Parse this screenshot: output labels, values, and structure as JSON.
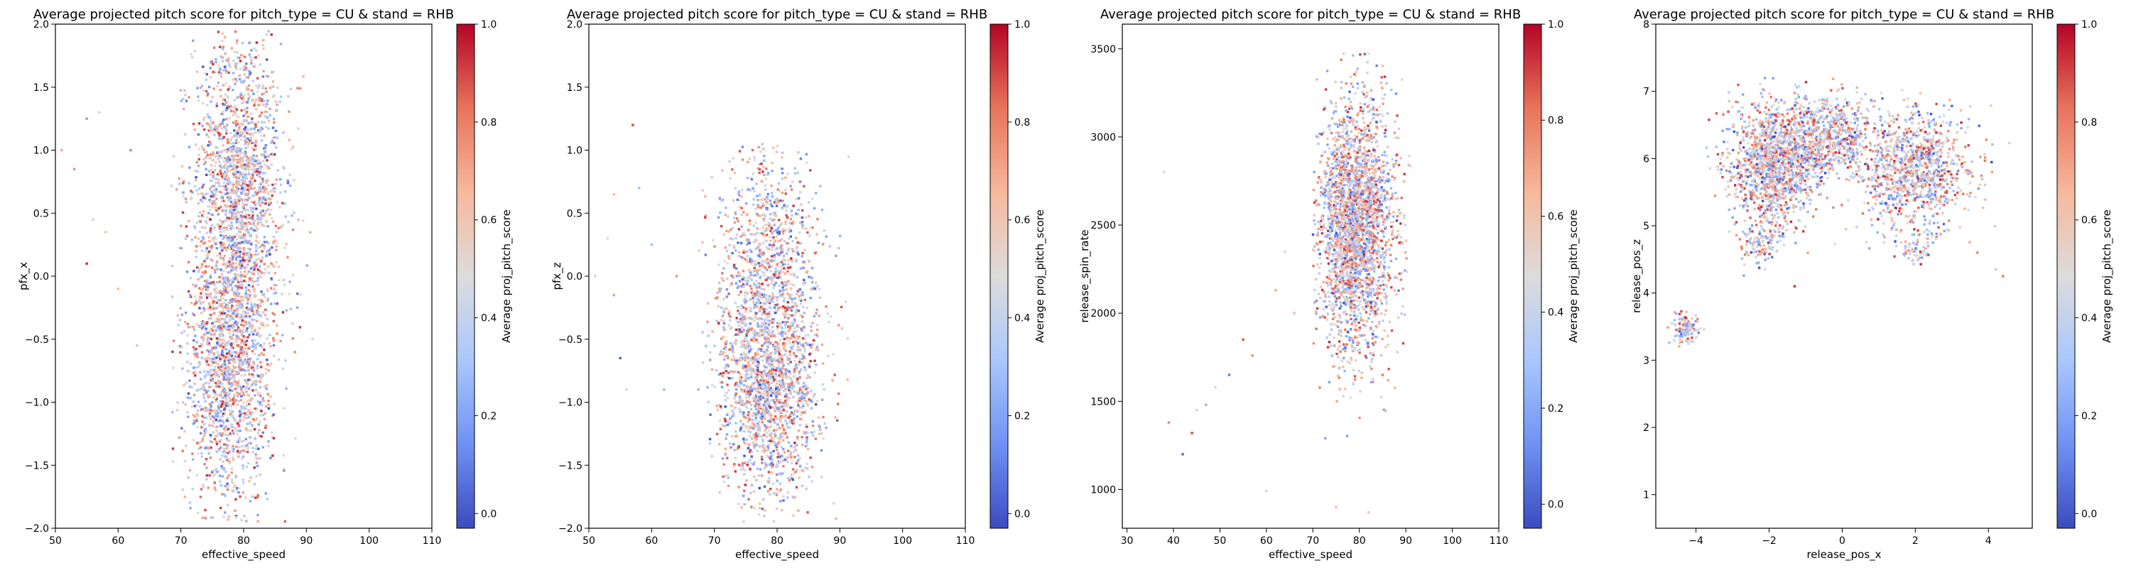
{
  "colors": {
    "cmap": [
      "#3b4cc0",
      "#6f92f3",
      "#aac7fd",
      "#dddcdc",
      "#f7b89c",
      "#e7745b",
      "#b40426"
    ],
    "axis": "#000000"
  },
  "colorbar_label": "Average proj_pitch_score",
  "chart_data": [
    {
      "type": "scatter",
      "title": "Average projected pitch score for pitch_type = CU & stand = RHB",
      "xlabel": "effective_speed",
      "ylabel": "pfx_x",
      "xlim": [
        50,
        110
      ],
      "ylim": [
        -2.0,
        2.0
      ],
      "xticks": [
        50,
        60,
        70,
        80,
        90,
        100,
        110
      ],
      "yticks": [
        -2.0,
        -1.5,
        -1.0,
        -0.5,
        0.0,
        0.5,
        1.0,
        1.5,
        2.0
      ],
      "xtick_labels": [
        "50",
        "60",
        "70",
        "80",
        "90",
        "100",
        "110"
      ],
      "ytick_labels": [
        "−2.0",
        "−1.5",
        "−1.0",
        "−0.5",
        "0.0",
        "0.5",
        "1.0",
        "1.5",
        "2.0"
      ],
      "colorbar": {
        "range": [
          -0.03,
          1.0
        ],
        "ticks": [
          0.0,
          0.2,
          0.4,
          0.6,
          0.8,
          1.0
        ],
        "tick_labels": [
          "0.0",
          "0.2",
          "0.4",
          "0.6",
          "0.8",
          "1.0"
        ]
      },
      "clusters": [
        {
          "cx": 79,
          "cy": 0.85,
          "sx": 3.5,
          "sy": 0.55,
          "n": 1500
        },
        {
          "cx": 77.5,
          "cy": -0.8,
          "sx": 3.5,
          "sy": 0.55,
          "n": 1500
        },
        {
          "cx": 79,
          "cy": 0.0,
          "sx": 4.5,
          "sy": 0.35,
          "n": 300
        }
      ],
      "outliers": [
        [
          51,
          1.0
        ],
        [
          53,
          0.85
        ],
        [
          55,
          1.25
        ],
        [
          56,
          0.45
        ],
        [
          58,
          0.35
        ],
        [
          60,
          -0.1
        ],
        [
          62,
          1.0
        ],
        [
          63,
          -0.55
        ],
        [
          55,
          0.1
        ],
        [
          57,
          1.3
        ]
      ],
      "clip": [
        68.5,
        92.5,
        -1.95,
        1.95
      ]
    },
    {
      "type": "scatter",
      "title": "Average projected pitch score for pitch_type = CU & stand = RHB",
      "xlabel": "effective_speed",
      "ylabel": "pfx_z",
      "xlim": [
        50,
        110
      ],
      "ylim": [
        -2.0,
        2.0
      ],
      "xticks": [
        50,
        60,
        70,
        80,
        90,
        100,
        110
      ],
      "yticks": [
        -2.0,
        -1.5,
        -1.0,
        -0.5,
        0.0,
        0.5,
        1.0,
        1.5,
        2.0
      ],
      "xtick_labels": [
        "50",
        "60",
        "70",
        "80",
        "90",
        "100",
        "110"
      ],
      "ytick_labels": [
        "−2.0",
        "−1.5",
        "−1.0",
        "−0.5",
        "0.0",
        "0.5",
        "1.0",
        "1.5",
        "2.0"
      ],
      "colorbar": {
        "range": [
          -0.03,
          1.0
        ],
        "ticks": [
          0.0,
          0.2,
          0.4,
          0.6,
          0.8,
          1.0
        ],
        "tick_labels": [
          "0.0",
          "0.2",
          "0.4",
          "0.6",
          "0.8",
          "1.0"
        ]
      },
      "clusters": [
        {
          "cx": 78.5,
          "cy": -0.75,
          "sx": 4.0,
          "sy": 0.5,
          "n": 2000
        },
        {
          "cx": 78.5,
          "cy": 0.35,
          "sx": 4.0,
          "sy": 0.35,
          "n": 500
        }
      ],
      "outliers": [
        [
          51,
          0.0
        ],
        [
          53,
          0.3
        ],
        [
          54,
          0.65
        ],
        [
          55,
          -0.65
        ],
        [
          56,
          -0.9
        ],
        [
          58,
          0.7
        ],
        [
          60,
          0.25
        ],
        [
          62,
          -0.9
        ],
        [
          64,
          0.0
        ],
        [
          54,
          -0.15
        ],
        [
          57,
          1.2
        ]
      ],
      "clip": [
        66.5,
        91.5,
        -1.95,
        1.05
      ]
    },
    {
      "type": "scatter",
      "title": "Average projected pitch score for pitch_type = CU & stand = RHB",
      "xlabel": "effective_speed",
      "ylabel": "release_spin_rate",
      "xlim": [
        29,
        110
      ],
      "ylim": [
        780,
        3640
      ],
      "xticks": [
        30,
        40,
        50,
        60,
        70,
        80,
        90,
        100,
        110
      ],
      "yticks": [
        1000,
        1500,
        2000,
        2500,
        3000,
        3500
      ],
      "xtick_labels": [
        "30",
        "40",
        "50",
        "60",
        "70",
        "80",
        "90",
        "100",
        "110"
      ],
      "ytick_labels": [
        "1000",
        "1500",
        "2000",
        "2500",
        "3000",
        "3500"
      ],
      "colorbar": {
        "range": [
          -0.05,
          1.0
        ],
        "ticks": [
          0.0,
          0.2,
          0.4,
          0.6,
          0.8,
          1.0
        ],
        "tick_labels": [
          "0.0",
          "0.2",
          "0.4",
          "0.6",
          "0.8",
          "1.0"
        ]
      },
      "clusters": [
        {
          "cx": 79,
          "cy": 2500,
          "sx": 4.2,
          "sy": 350,
          "n": 2600
        }
      ],
      "outliers": [
        [
          38,
          2800
        ],
        [
          39,
          1380
        ],
        [
          42,
          1200
        ],
        [
          44,
          1320
        ],
        [
          45,
          1450
        ],
        [
          47,
          1480
        ],
        [
          49,
          1580
        ],
        [
          52,
          1650
        ],
        [
          55,
          1850
        ],
        [
          57,
          1760
        ],
        [
          60,
          990
        ],
        [
          62,
          2130
        ],
        [
          64,
          2350
        ],
        [
          66,
          2000
        ],
        [
          75,
          900
        ],
        [
          82,
          870
        ],
        [
          85,
          1650
        ]
      ],
      "clip": [
        70,
        92,
        1200,
        3480
      ]
    },
    {
      "type": "scatter",
      "title": "Average projected pitch score for pitch_type = CU & stand = RHB",
      "xlabel": "release_pos_x",
      "ylabel": "release_pos_z",
      "xlim": [
        -5.1,
        5.2
      ],
      "ylim": [
        0.5,
        8.0
      ],
      "xticks": [
        -4,
        -2,
        0,
        2,
        4
      ],
      "yticks": [
        1,
        2,
        3,
        4,
        5,
        6,
        7,
        8
      ],
      "xtick_labels": [
        "−4",
        "−2",
        "0",
        "2",
        "4"
      ],
      "ytick_labels": [
        "1",
        "2",
        "3",
        "4",
        "5",
        "6",
        "7",
        "8"
      ],
      "colorbar": {
        "range": [
          -0.03,
          1.0
        ],
        "ticks": [
          0.0,
          0.2,
          0.4,
          0.6,
          0.8,
          1.0
        ],
        "tick_labels": [
          "0.0",
          "0.2",
          "0.4",
          "0.6",
          "0.8",
          "1.0"
        ]
      },
      "clusters": [
        {
          "cx": -1.8,
          "cy": 5.95,
          "sx": 0.65,
          "sy": 0.45,
          "n": 1300
        },
        {
          "cx": -0.5,
          "cy": 6.35,
          "sx": 0.55,
          "sy": 0.3,
          "n": 400
        },
        {
          "cx": 2.0,
          "cy": 5.85,
          "sx": 0.75,
          "sy": 0.45,
          "n": 1000
        },
        {
          "cx": 0.3,
          "cy": 6.3,
          "sx": 0.4,
          "sy": 0.25,
          "n": 150
        },
        {
          "cx": -2.2,
          "cy": 4.8,
          "sx": 0.3,
          "sy": 0.2,
          "n": 120
        },
        {
          "cx": 2.0,
          "cy": 4.65,
          "sx": 0.2,
          "sy": 0.12,
          "n": 60
        },
        {
          "cx": -4.3,
          "cy": 3.45,
          "sx": 0.2,
          "sy": 0.12,
          "n": 110
        }
      ],
      "outliers": [
        [
          4.2,
          4.35
        ],
        [
          4.4,
          4.25
        ],
        [
          -2.8,
          4.8
        ],
        [
          -1.3,
          4.1
        ],
        [
          3.7,
          4.6
        ]
      ],
      "clip": [
        -4.9,
        4.6,
        3.2,
        7.2
      ]
    }
  ]
}
